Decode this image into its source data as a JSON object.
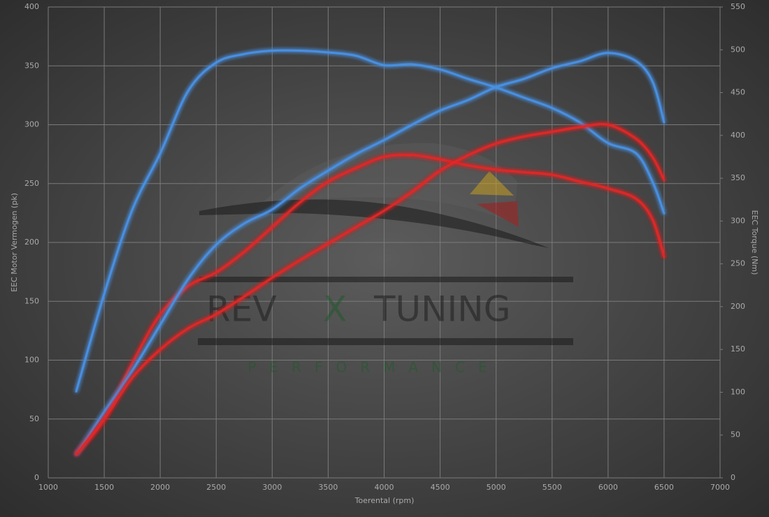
{
  "chart_data": {
    "type": "line",
    "x_label": "Toerental (rpm)",
    "y_label": "EEC Motor Vermogen (pk)",
    "y2_label": "EEC Torque (Nm)",
    "x": [
      1250,
      1500,
      1750,
      2000,
      2250,
      2500,
      2750,
      3000,
      3250,
      3500,
      3750,
      4000,
      4250,
      4500,
      4750,
      5000,
      5250,
      5500,
      5750,
      6000,
      6250,
      6400,
      6500
    ],
    "series": [
      {
        "color": "#4a8fe0",
        "axis": "y2",
        "values": [
          101,
          215,
          313,
          379,
          452,
          485,
          495,
          499,
          499,
          497,
          493,
          482,
          483,
          477,
          466,
          456,
          444,
          432,
          415,
          391,
          379,
          345,
          309
        ]
      },
      {
        "color": "#e02828",
        "axis": "y2",
        "values": [
          28,
          69,
          134,
          191,
          224,
          240,
          264,
          293,
          322,
          346,
          362,
          375,
          377,
          372,
          365,
          360,
          357,
          354,
          346,
          338,
          326,
          301,
          258
        ]
      },
      {
        "color": "#4a8fe0",
        "values": [
          20,
          56,
          91,
          130,
          169,
          198,
          216,
          228,
          246,
          261,
          275,
          287,
          300,
          312,
          321,
          332,
          339,
          348,
          354,
          361,
          354,
          336,
          302
        ]
      },
      {
        "color": "#e02828",
        "values": [
          20,
          50,
          85,
          109,
          127,
          139,
          154,
          170,
          185,
          199,
          213,
          227,
          243,
          261,
          274,
          284,
          290,
          294,
          298,
          300,
          288,
          272,
          253
        ]
      }
    ],
    "xlim": [
      1000,
      7000
    ],
    "xticks": [
      1000,
      1500,
      2000,
      2500,
      3000,
      3500,
      4000,
      4500,
      5000,
      5500,
      6000,
      6500,
      7000
    ],
    "ylim": [
      0,
      400
    ],
    "yticks": [
      0,
      50,
      100,
      150,
      200,
      250,
      300,
      350,
      400
    ],
    "y2lim": [
      0,
      550
    ],
    "y2ticks": [
      0,
      50,
      100,
      150,
      200,
      250,
      300,
      350,
      400,
      450,
      500,
      550
    ],
    "grid": true
  },
  "logo": {
    "left": "REV",
    "middle": "X",
    "right": "TUNING",
    "sub": "PERFORMANCE"
  }
}
